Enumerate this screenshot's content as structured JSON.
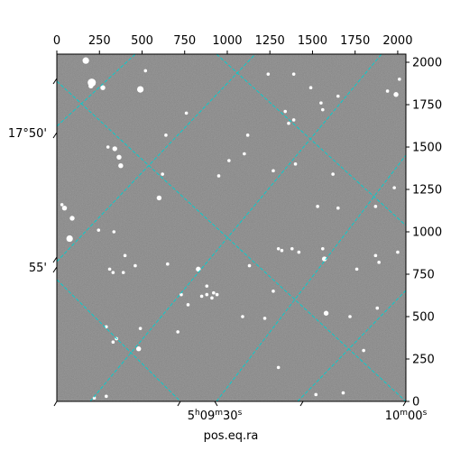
{
  "chart_data": {
    "type": "scatter",
    "title": "",
    "xlabel": "pos.eq.ra",
    "ylabel": "",
    "pixel_axes": {
      "xlim": [
        0,
        2048
      ],
      "ylim": [
        0,
        2048
      ],
      "x_ticks": [
        0,
        250,
        500,
        750,
        1000,
        1250,
        1500,
        1750,
        2000
      ],
      "y_ticks": [
        0,
        250,
        500,
        750,
        1000,
        1250,
        1500,
        1750,
        2000
      ],
      "x_tick_labels": [
        "0",
        "250",
        "500",
        "750",
        "1000",
        "1250",
        "1500",
        "1750",
        "2000"
      ],
      "y_tick_labels": [
        "0",
        "250",
        "500",
        "750",
        "1000",
        "1250",
        "1500",
        "1750",
        "2000"
      ]
    },
    "ra_labels": {
      "first": {
        "h": "5",
        "h_unit": "h",
        "m": "09",
        "m_unit": "m",
        "s": "30",
        "s_unit": "s"
      },
      "second": {
        "m": "10",
        "m_unit": "m",
        "s": "00",
        "s_unit": "s"
      }
    },
    "dec_labels": {
      "first": {
        "text": "17°50'"
      },
      "second": {
        "text": "55'"
      }
    },
    "grid": true,
    "image_background": "#6b6b6b",
    "grid_color": "#00d0d0",
    "stars": [
      {
        "x": 170,
        "y": 2010,
        "mag": 3
      },
      {
        "x": 200,
        "y": 1860,
        "mag": 2
      },
      {
        "x": 205,
        "y": 1880,
        "mag": 4
      },
      {
        "x": 270,
        "y": 1850,
        "mag": 2
      },
      {
        "x": 340,
        "y": 1490,
        "mag": 2
      },
      {
        "x": 300,
        "y": 1500,
        "mag": 1
      },
      {
        "x": 365,
        "y": 1440,
        "mag": 2
      },
      {
        "x": 375,
        "y": 1390,
        "mag": 2
      },
      {
        "x": 490,
        "y": 1840,
        "mag": 3
      },
      {
        "x": 520,
        "y": 1950,
        "mag": 1
      },
      {
        "x": 600,
        "y": 1200,
        "mag": 2
      },
      {
        "x": 640,
        "y": 1570,
        "mag": 1
      },
      {
        "x": 620,
        "y": 1340,
        "mag": 1
      },
      {
        "x": 760,
        "y": 1700,
        "mag": 1
      },
      {
        "x": 1010,
        "y": 1420,
        "mag": 1
      },
      {
        "x": 1100,
        "y": 1460,
        "mag": 1
      },
      {
        "x": 1120,
        "y": 1570,
        "mag": 1
      },
      {
        "x": 950,
        "y": 1330,
        "mag": 1
      },
      {
        "x": 30,
        "y": 1160,
        "mag": 1
      },
      {
        "x": 45,
        "y": 1140,
        "mag": 2
      },
      {
        "x": 90,
        "y": 1080,
        "mag": 2
      },
      {
        "x": 75,
        "y": 960,
        "mag": 3
      },
      {
        "x": 245,
        "y": 1010,
        "mag": 1
      },
      {
        "x": 335,
        "y": 1000,
        "mag": 1
      },
      {
        "x": 400,
        "y": 860,
        "mag": 1
      },
      {
        "x": 460,
        "y": 800,
        "mag": 1
      },
      {
        "x": 310,
        "y": 780,
        "mag": 1
      },
      {
        "x": 330,
        "y": 760,
        "mag": 1
      },
      {
        "x": 390,
        "y": 760,
        "mag": 1
      },
      {
        "x": 650,
        "y": 810,
        "mag": 1
      },
      {
        "x": 830,
        "y": 780,
        "mag": 2
      },
      {
        "x": 730,
        "y": 630,
        "mag": 1
      },
      {
        "x": 850,
        "y": 620,
        "mag": 1
      },
      {
        "x": 880,
        "y": 630,
        "mag": 1
      },
      {
        "x": 910,
        "y": 610,
        "mag": 1
      },
      {
        "x": 940,
        "y": 630,
        "mag": 1
      },
      {
        "x": 880,
        "y": 680,
        "mag": 1
      },
      {
        "x": 920,
        "y": 640,
        "mag": 1
      },
      {
        "x": 770,
        "y": 570,
        "mag": 1
      },
      {
        "x": 290,
        "y": 440,
        "mag": 1
      },
      {
        "x": 350,
        "y": 370,
        "mag": 1
      },
      {
        "x": 330,
        "y": 350,
        "mag": 1
      },
      {
        "x": 480,
        "y": 310,
        "mag": 2
      },
      {
        "x": 490,
        "y": 430,
        "mag": 1
      },
      {
        "x": 710,
        "y": 410,
        "mag": 1
      },
      {
        "x": 1090,
        "y": 500,
        "mag": 1
      },
      {
        "x": 1220,
        "y": 490,
        "mag": 1
      },
      {
        "x": 1270,
        "y": 650,
        "mag": 1
      },
      {
        "x": 1130,
        "y": 800,
        "mag": 1
      },
      {
        "x": 1320,
        "y": 890,
        "mag": 1
      },
      {
        "x": 1300,
        "y": 900,
        "mag": 1
      },
      {
        "x": 1380,
        "y": 900,
        "mag": 1
      },
      {
        "x": 1420,
        "y": 880,
        "mag": 1
      },
      {
        "x": 1560,
        "y": 900,
        "mag": 1
      },
      {
        "x": 1570,
        "y": 840,
        "mag": 2
      },
      {
        "x": 1530,
        "y": 1150,
        "mag": 1
      },
      {
        "x": 1650,
        "y": 1140,
        "mag": 1
      },
      {
        "x": 1760,
        "y": 780,
        "mag": 1
      },
      {
        "x": 1870,
        "y": 1150,
        "mag": 1
      },
      {
        "x": 1980,
        "y": 1260,
        "mag": 1
      },
      {
        "x": 2000,
        "y": 880,
        "mag": 1
      },
      {
        "x": 1870,
        "y": 860,
        "mag": 1
      },
      {
        "x": 1890,
        "y": 820,
        "mag": 1
      },
      {
        "x": 1580,
        "y": 520,
        "mag": 2
      },
      {
        "x": 1720,
        "y": 500,
        "mag": 1
      },
      {
        "x": 1880,
        "y": 550,
        "mag": 1
      },
      {
        "x": 1490,
        "y": 1850,
        "mag": 1
      },
      {
        "x": 1550,
        "y": 1760,
        "mag": 1
      },
      {
        "x": 1560,
        "y": 1720,
        "mag": 1
      },
      {
        "x": 1650,
        "y": 1800,
        "mag": 1
      },
      {
        "x": 1390,
        "y": 1930,
        "mag": 1
      },
      {
        "x": 1240,
        "y": 1930,
        "mag": 1
      },
      {
        "x": 1940,
        "y": 1830,
        "mag": 1
      },
      {
        "x": 2010,
        "y": 1900,
        "mag": 1
      },
      {
        "x": 1990,
        "y": 1810,
        "mag": 2
      },
      {
        "x": 1360,
        "y": 1640,
        "mag": 1
      },
      {
        "x": 1390,
        "y": 1660,
        "mag": 1
      },
      {
        "x": 1340,
        "y": 1710,
        "mag": 1
      },
      {
        "x": 1270,
        "y": 1360,
        "mag": 1
      },
      {
        "x": 1400,
        "y": 1400,
        "mag": 1
      },
      {
        "x": 1620,
        "y": 1340,
        "mag": 1
      },
      {
        "x": 1520,
        "y": 40,
        "mag": 1
      },
      {
        "x": 1680,
        "y": 50,
        "mag": 1
      },
      {
        "x": 290,
        "y": 30,
        "mag": 1
      },
      {
        "x": 220,
        "y": 20,
        "mag": 1
      },
      {
        "x": 1300,
        "y": 200,
        "mag": 1
      },
      {
        "x": 1800,
        "y": 300,
        "mag": 1
      }
    ]
  }
}
